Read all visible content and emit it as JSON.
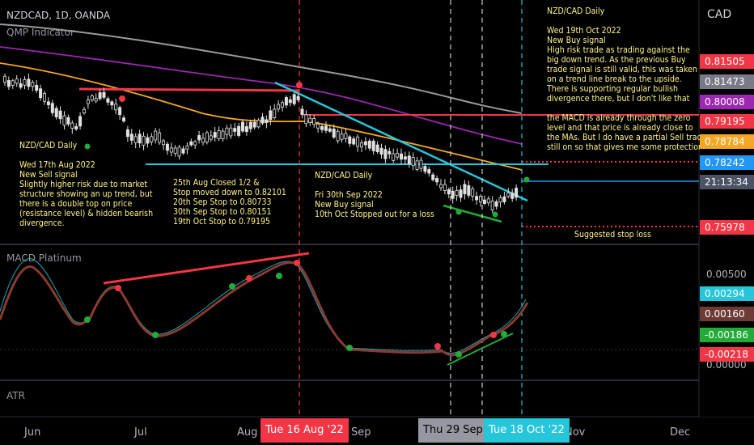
{
  "header": {
    "symbol": "NZDCAD, 1D, OANDA",
    "indicator": "QMP Indicator"
  },
  "panes": {
    "macd_title": "MACD Platinum",
    "atr_title": "ATR"
  },
  "price_axis": {
    "currency": "CAD",
    "boxes": [
      {
        "value": "0.81505",
        "color": "#f23645"
      },
      {
        "value": "0.81473",
        "color": "#787b86"
      },
      {
        "value": "0.80008",
        "color": "#9c27b0"
      },
      {
        "value": "0.79195",
        "color": "#f23645"
      },
      {
        "value": "0.78784",
        "color": "#f5a623"
      },
      {
        "value": "0.78242",
        "color": "#2196f3"
      },
      {
        "value": "21:13:34",
        "color": "#4a5263"
      },
      {
        "value": "0.75978",
        "color": "#f23645"
      }
    ],
    "macd_ticks": [
      "0.00500",
      "0.00000"
    ],
    "macd_boxes": [
      {
        "value": "0.00294",
        "color": "#26c6da"
      },
      {
        "value": "0.00160",
        "color": "#6d3b35"
      },
      {
        "value": "-0.00186",
        "color": "#22ab38"
      },
      {
        "value": "-0.00218",
        "color": "#f23645"
      }
    ]
  },
  "time_axis": {
    "labels": [
      "Jun",
      "Jul",
      "Aug",
      "Sep",
      "Nov",
      "Dec"
    ],
    "highlights": [
      {
        "label": "Tue 16 Aug '22",
        "color": "#f23645"
      },
      {
        "label": "Thu 29 Sep '22",
        "color": "#9598a1"
      },
      {
        "label": "Tue 18 Oct '22",
        "color": "#26c6da"
      }
    ]
  },
  "notes": {
    "note_aug": "NZD/CAD Daily\n\nWed 17th Aug 2022\nNew Sell signal\nSlightly higher risk due to market\nstructure showing an up trend, but\nthere is a double top on price\n(resistance level) & hidden bearish\ndivergence.",
    "note_stops": "25th Aug Closed 1/2 &\nStop moved down to 0.82101\n20th Sep Stop to 0.80733\n30th Sep Stop to 0.80151\n19th Oct Stop to 0.79195",
    "note_sep": "NZD/CAD Daily\n\nFri 30th Sep 2022\nNew Buy signal\n10th Oct Stopped out for a loss",
    "note_oct": "NZD/CAD Daily\n\nWed 19th Oct 2022\nNew Buy signal\nHigh risk trade as trading against the\nbig down trend. As the previous Buy\ntrade signal is still valid, this was taken\non a trend line break to the upside.\nThere is supporting regular bullish\ndivergence there, but I don't like that\n\nthe MACD is already through the zero\nlevel and that price is already close to\nthe MAs. But I do have a partial Sell trade\nstill on so that gives me some protection.",
    "stop_label": "Suggested stop loss"
  }
}
